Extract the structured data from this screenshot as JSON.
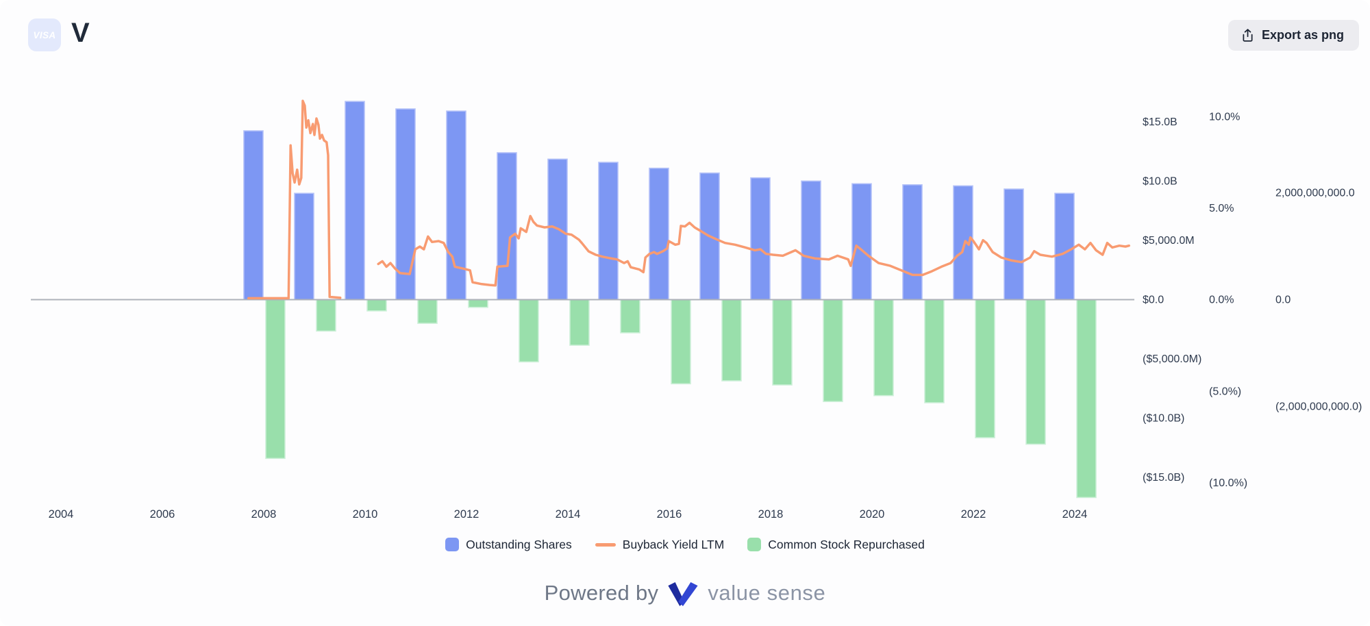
{
  "header": {
    "ticker_badge": "VISA",
    "badge_bg": "#e3e9fc",
    "title": "V"
  },
  "toolbar": {
    "export_label": "Export as png"
  },
  "legend": {
    "items": [
      {
        "label": "Outstanding Shares",
        "color": "#7d97f3",
        "swatch": "square"
      },
      {
        "label": "Buyback Yield LTM",
        "color": "#f89b71",
        "swatch": "line"
      },
      {
        "label": "Common Stock Repurchased",
        "color": "#99dfab",
        "swatch": "square"
      }
    ]
  },
  "footer": {
    "powered_by": "Powered by",
    "brand": "value sense",
    "logo_colors": [
      "#1e2b9e",
      "#3246d3"
    ]
  },
  "chart_data": {
    "type": "combo",
    "title": "Visa (V) outstanding shares, buyback yield LTM and common stock repurchased",
    "grid": false,
    "legend_position": "bottom",
    "x_axis": {
      "tick_years": [
        2004,
        2006,
        2008,
        2010,
        2012,
        2014,
        2016,
        2018,
        2020,
        2022,
        2024
      ]
    },
    "axes": {
      "dollars": {
        "side": "right",
        "unit": "USD",
        "ticks": [
          [
            "$15.0B",
            15
          ],
          [
            "$10.0B",
            10
          ],
          [
            "$5,000.0M",
            5
          ],
          [
            "$0.0",
            0
          ],
          [
            "($5,000.0M)",
            -5
          ],
          [
            "($10.0B)",
            -10
          ],
          [
            "($15.0B)",
            -15
          ]
        ]
      },
      "percent": {
        "side": "right",
        "unit": "%",
        "ticks": [
          [
            "10.0%",
            10
          ],
          [
            "5.0%",
            5
          ],
          [
            "0.0%",
            0
          ],
          [
            "(5.0%)",
            -5
          ],
          [
            "(10.0%)",
            -10
          ]
        ]
      },
      "shares": {
        "side": "right",
        "unit": "shares",
        "ticks": [
          [
            "2,000,000,000.0",
            2
          ],
          [
            "0.0",
            0
          ],
          [
            "(2,000,000,000.0)",
            -2
          ]
        ]
      }
    },
    "series": [
      {
        "name": "Outstanding Shares",
        "type": "bar",
        "axis": "shares",
        "color": "#7d97f3",
        "edge": "#b3c1f8",
        "unit": "billions of shares",
        "points": [
          [
            2008,
            3.16
          ],
          [
            2009,
            1.99
          ],
          [
            2010,
            3.71
          ],
          [
            2011,
            3.57
          ],
          [
            2012,
            3.53
          ],
          [
            2013,
            2.75
          ],
          [
            2014,
            2.63
          ],
          [
            2015,
            2.57
          ],
          [
            2016,
            2.46
          ],
          [
            2017,
            2.37
          ],
          [
            2018,
            2.28
          ],
          [
            2019,
            2.22
          ],
          [
            2020,
            2.17
          ],
          [
            2021,
            2.15
          ],
          [
            2022,
            2.13
          ],
          [
            2023,
            2.07
          ],
          [
            2024,
            1.99
          ]
        ]
      },
      {
        "name": "Buyback Yield LTM",
        "type": "line",
        "axis": "percent",
        "color": "#f89b71",
        "unit": "%",
        "segments": [
          [
            [
              2007.7,
              0.08
            ],
            [
              2008.49,
              0.08
            ],
            [
              2008.53,
              8.43
            ],
            [
              2008.57,
              6.9
            ],
            [
              2008.61,
              6.4
            ],
            [
              2008.66,
              7.1
            ],
            [
              2008.7,
              6.3
            ],
            [
              2008.74,
              6.65
            ],
            [
              2008.77,
              10.86
            ],
            [
              2008.81,
              10.6
            ],
            [
              2008.84,
              9.4
            ],
            [
              2008.88,
              9.8
            ],
            [
              2008.92,
              9.1
            ],
            [
              2008.97,
              9.6
            ],
            [
              2009.0,
              9.0
            ],
            [
              2009.04,
              9.9
            ],
            [
              2009.08,
              9.55
            ],
            [
              2009.11,
              8.8
            ],
            [
              2009.15,
              9.0
            ],
            [
              2009.19,
              8.7
            ],
            [
              2009.24,
              8.6
            ],
            [
              2009.27,
              7.9
            ],
            [
              2009.3,
              0.15
            ],
            [
              2009.51,
              0.1
            ]
          ],
          [
            [
              2010.26,
              1.95
            ],
            [
              2010.34,
              2.1
            ],
            [
              2010.42,
              1.8
            ],
            [
              2010.5,
              2.0
            ],
            [
              2010.59,
              1.7
            ],
            [
              2010.69,
              1.45
            ],
            [
              2010.88,
              1.4
            ],
            [
              2010.99,
              2.75
            ],
            [
              2011.08,
              2.9
            ],
            [
              2011.16,
              2.75
            ],
            [
              2011.24,
              3.45
            ],
            [
              2011.32,
              3.15
            ],
            [
              2011.45,
              3.2
            ],
            [
              2011.55,
              3.1
            ],
            [
              2011.64,
              2.6
            ],
            [
              2011.72,
              2.35
            ],
            [
              2011.77,
              1.8
            ],
            [
              2011.93,
              1.7
            ],
            [
              2012.07,
              1.6
            ],
            [
              2012.12,
              0.95
            ],
            [
              2012.3,
              0.85
            ],
            [
              2012.46,
              0.8
            ],
            [
              2012.57,
              0.78
            ],
            [
              2012.61,
              1.8
            ],
            [
              2012.81,
              1.85
            ],
            [
              2012.86,
              3.4
            ],
            [
              2012.96,
              3.6
            ],
            [
              2013.03,
              3.35
            ],
            [
              2013.07,
              3.9
            ],
            [
              2013.18,
              3.7
            ],
            [
              2013.26,
              4.57
            ],
            [
              2013.32,
              4.25
            ],
            [
              2013.39,
              4.05
            ],
            [
              2013.54,
              3.95
            ],
            [
              2013.69,
              4.0
            ],
            [
              2013.82,
              3.85
            ],
            [
              2013.96,
              3.6
            ],
            [
              2014.07,
              3.55
            ],
            [
              2014.22,
              3.27
            ],
            [
              2014.28,
              3.08
            ],
            [
              2014.41,
              2.64
            ],
            [
              2014.55,
              2.45
            ],
            [
              2014.68,
              2.35
            ],
            [
              2014.86,
              2.25
            ],
            [
              2014.97,
              2.2
            ],
            [
              2015.11,
              2.0
            ],
            [
              2015.18,
              2.1
            ],
            [
              2015.24,
              1.77
            ],
            [
              2015.41,
              1.65
            ],
            [
              2015.49,
              1.5
            ],
            [
              2015.53,
              2.3
            ],
            [
              2015.61,
              2.5
            ],
            [
              2015.7,
              2.6
            ],
            [
              2015.76,
              2.5
            ],
            [
              2015.88,
              2.65
            ],
            [
              2015.96,
              2.8
            ],
            [
              2015.99,
              3.2
            ],
            [
              2016.12,
              3.0
            ],
            [
              2016.19,
              3.05
            ],
            [
              2016.23,
              4.03
            ],
            [
              2016.31,
              4.0
            ],
            [
              2016.4,
              4.2
            ],
            [
              2016.5,
              3.95
            ],
            [
              2016.62,
              3.75
            ],
            [
              2016.77,
              3.5
            ],
            [
              2016.93,
              3.3
            ],
            [
              2017.1,
              3.1
            ],
            [
              2017.3,
              3.0
            ],
            [
              2017.5,
              2.85
            ],
            [
              2017.69,
              2.7
            ],
            [
              2017.8,
              2.75
            ],
            [
              2017.91,
              2.5
            ],
            [
              2018.05,
              2.45
            ],
            [
              2018.24,
              2.4
            ],
            [
              2018.49,
              2.7
            ],
            [
              2018.65,
              2.4
            ],
            [
              2018.88,
              2.25
            ],
            [
              2019.15,
              2.2
            ],
            [
              2019.32,
              2.4
            ],
            [
              2019.53,
              2.2
            ],
            [
              2019.58,
              1.85
            ],
            [
              2019.69,
              2.95
            ],
            [
              2019.76,
              2.8
            ],
            [
              2019.93,
              2.4
            ],
            [
              2020.13,
              2.0
            ],
            [
              2020.36,
              1.85
            ],
            [
              2020.58,
              1.6
            ],
            [
              2020.8,
              1.35
            ],
            [
              2021.0,
              1.35
            ],
            [
              2021.18,
              1.55
            ],
            [
              2021.37,
              1.8
            ],
            [
              2021.55,
              2.0
            ],
            [
              2021.68,
              2.4
            ],
            [
              2021.78,
              2.6
            ],
            [
              2021.84,
              3.2
            ],
            [
              2021.91,
              3.0
            ],
            [
              2021.94,
              3.4
            ],
            [
              2022.0,
              3.2
            ],
            [
              2022.11,
              2.75
            ],
            [
              2022.19,
              3.25
            ],
            [
              2022.26,
              3.1
            ],
            [
              2022.38,
              2.6
            ],
            [
              2022.55,
              2.3
            ],
            [
              2022.74,
              2.15
            ],
            [
              2022.95,
              2.05
            ],
            [
              2023.12,
              2.3
            ],
            [
              2023.2,
              2.65
            ],
            [
              2023.32,
              2.45
            ],
            [
              2023.55,
              2.35
            ],
            [
              2023.76,
              2.5
            ],
            [
              2023.93,
              2.75
            ],
            [
              2024.08,
              3.0
            ],
            [
              2024.2,
              2.75
            ],
            [
              2024.31,
              3.1
            ],
            [
              2024.42,
              2.7
            ],
            [
              2024.55,
              2.45
            ],
            [
              2024.64,
              3.1
            ],
            [
              2024.74,
              2.85
            ],
            [
              2024.88,
              2.95
            ],
            [
              2025.0,
              2.9
            ],
            [
              2025.07,
              2.95
            ]
          ]
        ]
      },
      {
        "name": "Common Stock Repurchased",
        "type": "bar",
        "axis": "dollars",
        "color": "#99dfab",
        "edge": "#cdf0d8",
        "unit": "USD billions",
        "points": [
          [
            2008,
            -13.4
          ],
          [
            2009,
            -2.65
          ],
          [
            2010,
            -0.95
          ],
          [
            2011,
            -2.0
          ],
          [
            2012,
            -0.65
          ],
          [
            2013,
            -5.25
          ],
          [
            2014,
            -3.85
          ],
          [
            2015,
            -2.8
          ],
          [
            2016,
            -7.1
          ],
          [
            2017,
            -6.85
          ],
          [
            2018,
            -7.2
          ],
          [
            2019,
            -8.6
          ],
          [
            2020,
            -8.1
          ],
          [
            2021,
            -8.7
          ],
          [
            2022,
            -11.65
          ],
          [
            2023,
            -12.2
          ],
          [
            2024,
            -16.7
          ]
        ]
      }
    ]
  }
}
